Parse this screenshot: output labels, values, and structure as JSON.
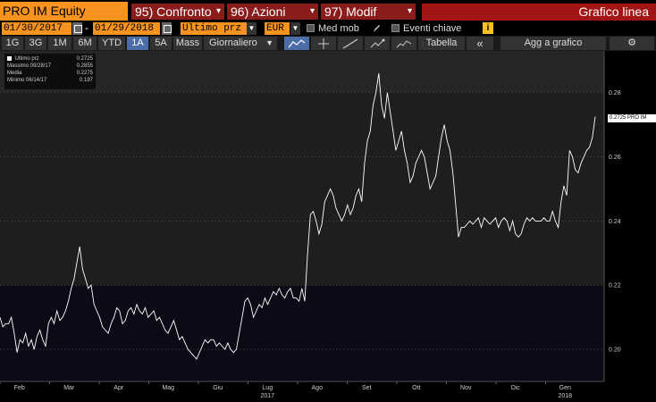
{
  "header": {
    "security": "PRO IM Equity",
    "menus": [
      {
        "label": "95) Confronto"
      },
      {
        "label": "96) Azioni"
      },
      {
        "label": "97) Modif"
      }
    ],
    "chart_type": "Grafico linea"
  },
  "controls": {
    "start_date": "01/30/2017",
    "date_separator": "-",
    "end_date": "01/29/2018",
    "field": "Ultimo prz",
    "currency": "EUR",
    "moving_average_label": "Med mob",
    "key_events_label": "Eventi chiave",
    "info_label": "i"
  },
  "periods": {
    "tabs": [
      "1G",
      "3G",
      "1M",
      "6M",
      "YTD",
      "1A",
      "5A",
      "Mass"
    ],
    "active": "1A",
    "frequency": "Giornaliero",
    "table_label": "Tabella",
    "collapse_label": "«",
    "add_chart_label": "Agg a grafico",
    "settings_label": "⚙"
  },
  "legend": {
    "rows": [
      {
        "label": "Ultimo prz",
        "value": "0.2725"
      },
      {
        "label": "Massimo 09/28/17",
        "value": "0.2855"
      },
      {
        "label": "Media",
        "value": "0.2275"
      },
      {
        "label": "Minimo 06/14/17",
        "value": "0.197"
      }
    ]
  },
  "last_price_tag": "0.2725 PRO IM",
  "colors": {
    "accent_orange": "#f7931e",
    "menu_red": "#8a1c1c",
    "chart_type_red": "#a31515",
    "active_tab_blue": "#4b6ea8",
    "line": "#ffffff"
  },
  "chart_data": {
    "type": "line",
    "series": [
      {
        "name": "PRO IM",
        "values": [
          0.21,
          0.207,
          0.208,
          0.208,
          0.21,
          0.205,
          0.199,
          0.203,
          0.202,
          0.205,
          0.201,
          0.203,
          0.2,
          0.204,
          0.206,
          0.203,
          0.201,
          0.208,
          0.21,
          0.208,
          0.212,
          0.209,
          0.21,
          0.212,
          0.215,
          0.219,
          0.222,
          0.227,
          0.232,
          0.225,
          0.222,
          0.219,
          0.22,
          0.214,
          0.212,
          0.21,
          0.207,
          0.206,
          0.205,
          0.208,
          0.21,
          0.213,
          0.212,
          0.208,
          0.209,
          0.212,
          0.213,
          0.211,
          0.214,
          0.212,
          0.211,
          0.213,
          0.21,
          0.211,
          0.212,
          0.209,
          0.21,
          0.208,
          0.206,
          0.205,
          0.207,
          0.209,
          0.206,
          0.203,
          0.204,
          0.202,
          0.2,
          0.199,
          0.198,
          0.197,
          0.199,
          0.201,
          0.203,
          0.202,
          0.203,
          0.203,
          0.201,
          0.202,
          0.201,
          0.2,
          0.202,
          0.2,
          0.199,
          0.2,
          0.205,
          0.21,
          0.215,
          0.216,
          0.214,
          0.21,
          0.212,
          0.214,
          0.213,
          0.216,
          0.214,
          0.216,
          0.218,
          0.217,
          0.219,
          0.217,
          0.216,
          0.218,
          0.219,
          0.216,
          0.216,
          0.215,
          0.219,
          0.215,
          0.23,
          0.242,
          0.243,
          0.24,
          0.236,
          0.239,
          0.246,
          0.248,
          0.25,
          0.248,
          0.244,
          0.242,
          0.24,
          0.242,
          0.245,
          0.242,
          0.244,
          0.248,
          0.25,
          0.246,
          0.258,
          0.265,
          0.268,
          0.276,
          0.28,
          0.286,
          0.276,
          0.272,
          0.28,
          0.274,
          0.268,
          0.262,
          0.265,
          0.268,
          0.262,
          0.258,
          0.252,
          0.254,
          0.258,
          0.26,
          0.262,
          0.26,
          0.255,
          0.25,
          0.252,
          0.254,
          0.26,
          0.266,
          0.27,
          0.265,
          0.262,
          0.255,
          0.245,
          0.235,
          0.238,
          0.238,
          0.239,
          0.24,
          0.239,
          0.24,
          0.241,
          0.238,
          0.241,
          0.24,
          0.239,
          0.24,
          0.241,
          0.238,
          0.24,
          0.241,
          0.24,
          0.237,
          0.24,
          0.236,
          0.235,
          0.236,
          0.239,
          0.241,
          0.24,
          0.241,
          0.24,
          0.24,
          0.24,
          0.241,
          0.24,
          0.24,
          0.243,
          0.24,
          0.238,
          0.246,
          0.251,
          0.248,
          0.262,
          0.26,
          0.256,
          0.255,
          0.258,
          0.26,
          0.262,
          0.263,
          0.266,
          0.2725
        ]
      }
    ],
    "x_labels": [
      "Feb",
      "Mar",
      "Apr",
      "Mag",
      "Giu",
      "Lug",
      "Ago",
      "Set",
      "Ott",
      "Nov",
      "Dic",
      "Gen"
    ],
    "year_labels": [
      {
        "label": "2017",
        "under": "Lug"
      },
      {
        "label": "2018",
        "under": "Gen"
      }
    ],
    "y_ticks": [
      0.2,
      0.22,
      0.24,
      0.26,
      0.28
    ],
    "ylim": [
      0.19,
      0.293
    ],
    "grid": true
  }
}
